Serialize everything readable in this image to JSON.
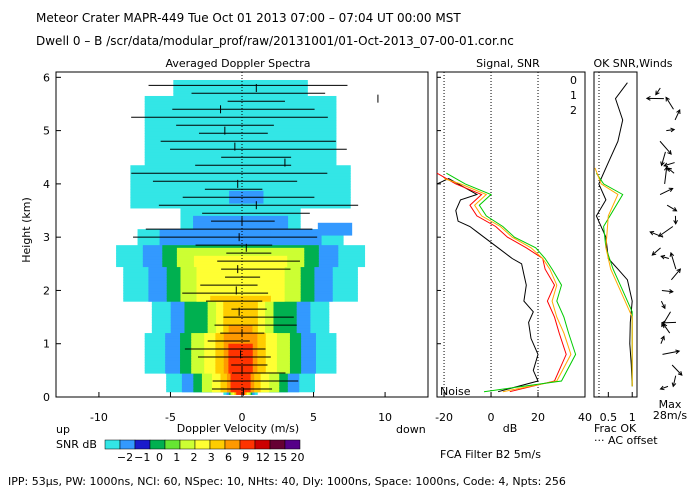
{
  "header": {
    "line1": "Meteor Crater   MAPR-449   Tue Oct 01 2013 07:00 – 07:04 UT 00:00 MST",
    "line2": "Dwell   0 –   B     /scr/data/modular_prof/raw/20131001/01-Oct-2013_07-00-01.cor.nc"
  },
  "footer": {
    "params": "IPP:  53µs,   PW: 1000ns,   NCI:  60,   NSpec: 10,  NHts: 40,   Dly: 1000ns,   Space: 1000ns,   Code: 4,   Npts: 256"
  },
  "colors": {
    "snr_palette": [
      "#33e6e6",
      "#3399ff",
      "#1a1acc",
      "#00b050",
      "#66e633",
      "#ccff33",
      "#ffff33",
      "#ffcc00",
      "#ff9900",
      "#ff3300",
      "#cc0000",
      "#660033",
      "#550088"
    ],
    "series": [
      "#ff0000",
      "#ffaa00",
      "#00cc00"
    ]
  },
  "chart_data": [
    {
      "type": "heatmap",
      "title": "Averaged Doppler Spectra",
      "xlabel": "Doppler Velocity (m/s)",
      "ylabel": "Height (km)",
      "x_left_label": "up",
      "x_right_label": "down",
      "xlim": [
        -13,
        13
      ],
      "ylim": [
        0,
        6.1
      ],
      "xticks": [
        -10,
        -5,
        0,
        5,
        10
      ],
      "yticks": [
        0,
        1,
        2,
        3,
        4,
        5,
        6
      ],
      "colorbar": {
        "label": "SNR dB",
        "ticks": [
          "−2",
          "−1",
          "0",
          "1",
          "2",
          "3",
          "6",
          "9",
          "12",
          "15",
          "20"
        ]
      },
      "mean_velocity": [
        [
          0.1,
          0.1
        ],
        [
          0.0,
          0.5
        ],
        [
          -0.1,
          0.8
        ],
        [
          0.0,
          1.2
        ],
        [
          -0.2,
          1.6
        ],
        [
          -0.4,
          2.0
        ],
        [
          -0.3,
          2.4
        ],
        [
          0.3,
          2.8
        ],
        [
          -0.2,
          3.0
        ],
        [
          0.0,
          3.3
        ],
        [
          1.0,
          3.6
        ],
        [
          -0.3,
          4.0
        ],
        [
          3.0,
          4.4
        ],
        [
          -0.5,
          4.7
        ],
        [
          -1.2,
          5.0
        ],
        [
          -1.5,
          5.4
        ],
        [
          1.0,
          5.8
        ],
        [
          9.5,
          5.6
        ]
      ]
    },
    {
      "type": "line",
      "title": "Signal, SNR",
      "xlabel": "dB",
      "xticks": [
        -20,
        0,
        20,
        40
      ],
      "xlim": [
        -23,
        40
      ],
      "ylim": [
        0,
        6.1
      ],
      "annotation": "Noise",
      "legend": [
        "0",
        "1",
        "2"
      ],
      "series": [
        {
          "name": "signal",
          "points": [
            [
              3,
              0.1
            ],
            [
              20,
              0.3
            ],
            [
              18,
              0.5
            ],
            [
              20,
              0.8
            ],
            [
              17,
              1.1
            ],
            [
              16,
              1.4
            ],
            [
              18,
              1.6
            ],
            [
              14,
              1.8
            ],
            [
              15,
              2.1
            ],
            [
              14,
              2.3
            ],
            [
              13,
              2.5
            ],
            [
              9,
              2.6
            ],
            [
              3,
              2.8
            ],
            [
              -3,
              3.0
            ],
            [
              -6,
              3.1
            ],
            [
              -9,
              3.2
            ],
            [
              -14,
              3.3
            ],
            [
              -15,
              3.5
            ],
            [
              -13,
              3.7
            ],
            [
              -6,
              3.8
            ],
            [
              -18,
              4.1
            ],
            [
              -23,
              4.0
            ]
          ]
        },
        {
          "name": "0",
          "points": [
            [
              8,
              0.1
            ],
            [
              27,
              0.3
            ],
            [
              32,
              0.8
            ],
            [
              29,
              1.2
            ],
            [
              27,
              1.5
            ],
            [
              24,
              1.8
            ],
            [
              27,
              2.1
            ],
            [
              23,
              2.4
            ],
            [
              22,
              2.6
            ],
            [
              15,
              2.8
            ],
            [
              7,
              3.0
            ],
            [
              2,
              3.2
            ],
            [
              -6,
              3.4
            ],
            [
              -9,
              3.6
            ],
            [
              -4,
              3.8
            ],
            [
              -15,
              4.0
            ],
            [
              -23,
              4.2
            ]
          ]
        },
        {
          "name": "1",
          "points": [
            [
              5,
              0.1
            ],
            [
              28,
              0.3
            ],
            [
              34,
              0.8
            ],
            [
              31,
              1.2
            ],
            [
              28,
              1.5
            ],
            [
              26,
              1.8
            ],
            [
              28,
              2.1
            ],
            [
              25,
              2.4
            ],
            [
              22,
              2.6
            ],
            [
              17,
              2.8
            ],
            [
              9,
              3.0
            ],
            [
              4,
              3.2
            ],
            [
              -4,
              3.4
            ],
            [
              -7,
              3.6
            ],
            [
              -2,
              3.8
            ],
            [
              -13,
              4.0
            ],
            [
              -20,
              4.1
            ]
          ]
        },
        {
          "name": "2",
          "points": [
            [
              -3,
              0.1
            ],
            [
              30,
              0.3
            ],
            [
              36,
              0.8
            ],
            [
              33,
              1.2
            ],
            [
              31,
              1.5
            ],
            [
              28,
              1.8
            ],
            [
              30,
              2.1
            ],
            [
              26,
              2.4
            ],
            [
              23,
              2.6
            ],
            [
              19,
              2.8
            ],
            [
              10,
              3.0
            ],
            [
              5,
              3.2
            ],
            [
              -2,
              3.4
            ],
            [
              -5,
              3.6
            ],
            [
              0,
              3.8
            ],
            [
              -11,
              4.0
            ],
            [
              -19,
              4.2
            ]
          ]
        }
      ]
    },
    {
      "type": "line",
      "title": "OK SNR,Winds",
      "xlabel": "Frac OK",
      "xlabel2": "··· AC offset",
      "xticks": [
        "0.5",
        "1"
      ],
      "xlim": [
        0.2,
        1.1
      ],
      "ylim": [
        0,
        6.1
      ],
      "series": [
        {
          "name": "frac_ok_0",
          "points": [
            [
              1,
              0.2
            ],
            [
              0.98,
              0.6
            ],
            [
              0.95,
              1.0
            ],
            [
              0.96,
              1.4
            ],
            [
              1,
              1.8
            ],
            [
              0.9,
              2.2
            ],
            [
              0.7,
              2.4
            ],
            [
              0.5,
              2.6
            ],
            [
              0.45,
              3.0
            ],
            [
              0.25,
              3.4
            ],
            [
              0.45,
              3.7
            ],
            [
              0.3,
              4.0
            ],
            [
              0.5,
              4.4
            ],
            [
              0.7,
              4.8
            ],
            [
              0.8,
              5.2
            ],
            [
              0.65,
              5.6
            ],
            [
              0.9,
              5.9
            ]
          ]
        },
        {
          "name": "frac_ok_2",
          "points": [
            [
              1,
              0.2
            ],
            [
              1,
              0.8
            ],
            [
              1,
              1.6
            ],
            [
              0.8,
              2.0
            ],
            [
              0.6,
              2.4
            ],
            [
              0.45,
              2.8
            ],
            [
              0.4,
              3.2
            ],
            [
              0.8,
              3.8
            ],
            [
              0.4,
              4.0
            ],
            [
              0.25,
              4.2
            ]
          ]
        },
        {
          "name": "frac_ok_1",
          "points": [
            [
              1,
              0.2
            ],
            [
              1,
              0.8
            ],
            [
              1,
              1.5
            ],
            [
              0.75,
              2.0
            ],
            [
              0.55,
              2.4
            ],
            [
              0.45,
              2.8
            ],
            [
              0.5,
              3.4
            ],
            [
              0.7,
              3.8
            ],
            [
              0.35,
              4.0
            ],
            [
              0.22,
              4.3
            ]
          ]
        }
      ],
      "winds_label_1": "Max",
      "winds_label_2": "28m/s"
    }
  ],
  "filter_label": "FCA Filter B2   5m/s"
}
